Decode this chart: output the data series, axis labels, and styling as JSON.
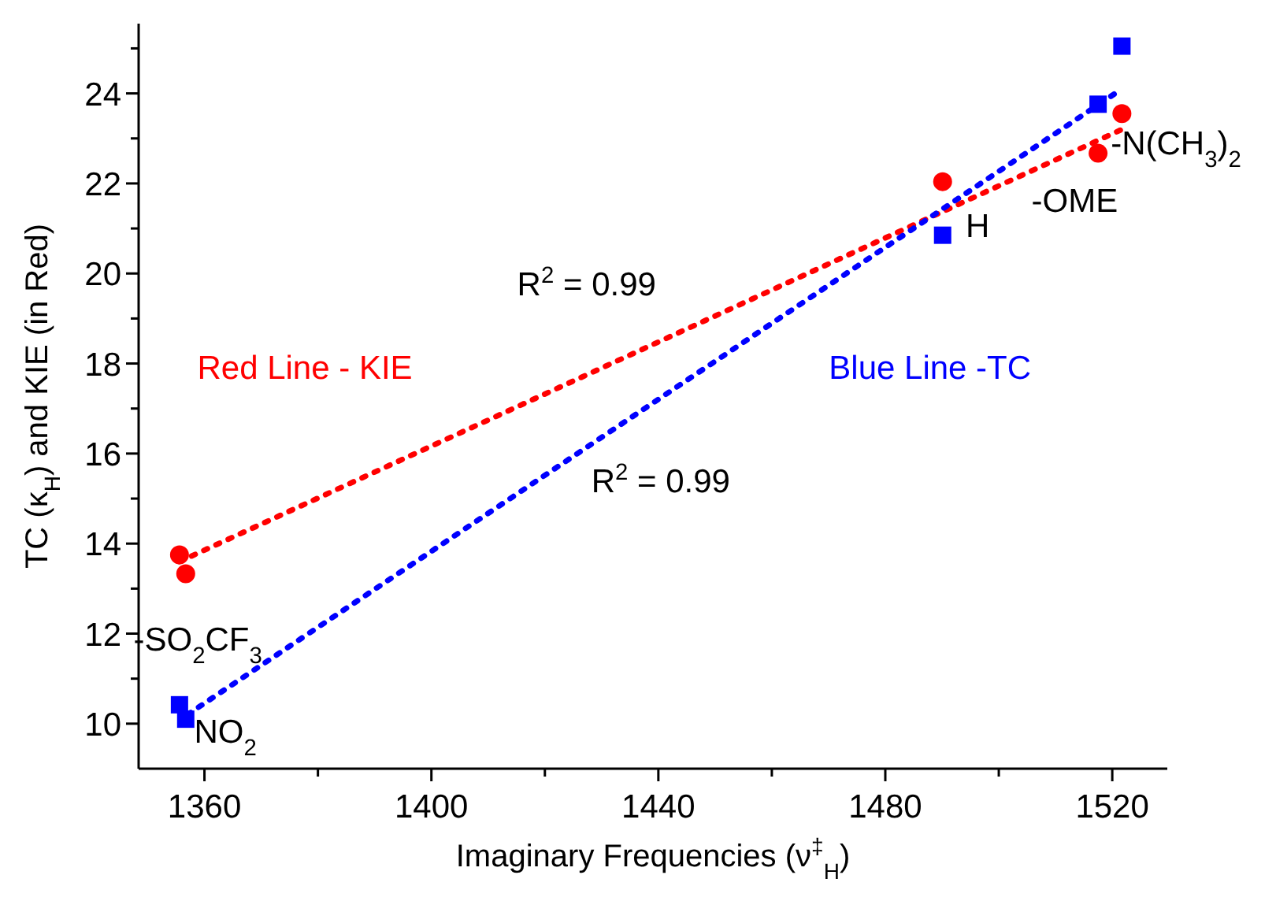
{
  "chart_data": {
    "type": "scatter",
    "xlabel": "Imaginary Frequencies (ν$^{‡}$$_{H}$)",
    "ylabel": "TC (κ$_{H}$) and KIE (in Red)",
    "xlim": [
      1348.4,
      1529.7
    ],
    "ylim": [
      9,
      25.55
    ],
    "xticks": [
      1360,
      {
        "value": 1380,
        "label": null
      },
      1400,
      {
        "value": 1420,
        "label": null
      },
      1440,
      {
        "value": 1460,
        "label": null
      },
      1480,
      {
        "value": 1500,
        "label": null
      },
      1520
    ],
    "yticks": [
      10,
      {
        "value": 11,
        "label": null
      },
      12,
      {
        "value": 13,
        "label": null
      },
      14,
      {
        "value": 15,
        "label": null
      },
      16,
      {
        "value": 17,
        "label": null
      },
      18,
      {
        "value": 19,
        "label": null
      },
      20,
      {
        "value": 21,
        "label": null
      },
      22,
      {
        "value": 23,
        "label": null
      },
      24,
      {
        "value": 25,
        "label": null
      }
    ],
    "grid": false,
    "series": [
      {
        "marker": "circle",
        "color": "#ff0000",
        "x": [
          1355.6,
          1356.7,
          1490.1,
          1517.5,
          1521.7
        ],
        "values": [
          13.75,
          13.33,
          22.04,
          22.67,
          23.55
        ]
      },
      {
        "marker": "square",
        "color": "#0000ff",
        "x": [
          1355.6,
          1356.7,
          1490.1,
          1517.5,
          1521.7
        ],
        "values": [
          10.42,
          10.1,
          20.85,
          23.76,
          25.05
        ]
      },
      {
        "type": "line",
        "name": "Red Line - KIE",
        "line_style": "dotted",
        "color": "#ff0000",
        "x": [
          1355.6,
          1521.7
        ],
        "values": [
          13.6,
          23.2
        ]
      },
      {
        "type": "line",
        "name": "Blue Line -TC",
        "line_style": "dotted",
        "color": "#0000ff",
        "x": [
          1357,
          1521.7
        ],
        "values": [
          10.2,
          24.1
        ]
      }
    ],
    "annotations": [
      "-SO$_{2}$CF$_{3}$",
      "NO$_{2}$",
      "H",
      "-OME",
      "-N(CH$_{3}$)$_{2}$",
      "R$^{2}$ = 0.99",
      "R$^{2}$ = 0.99"
    ]
  }
}
